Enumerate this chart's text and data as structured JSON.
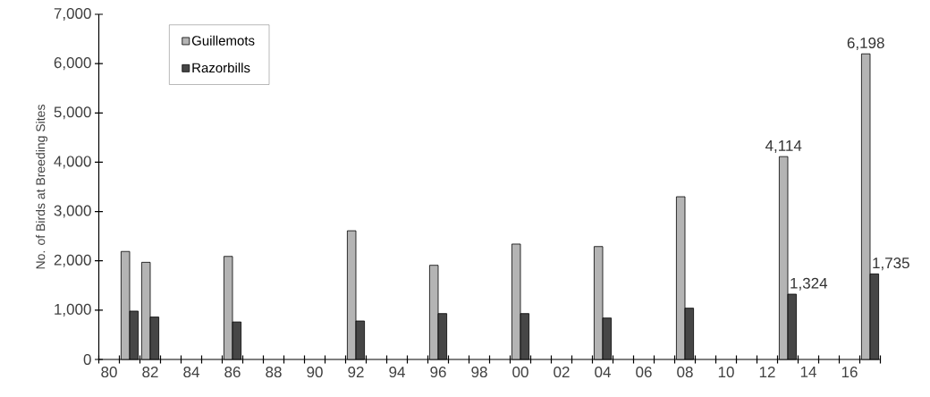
{
  "chart_data": {
    "type": "bar",
    "ylabel": "No. of Birds at Breeding Sites",
    "categories": [
      "80",
      null,
      "82",
      null,
      "84",
      null,
      "86",
      null,
      "88",
      null,
      "90",
      null,
      "92",
      null,
      "94",
      null,
      "96",
      null,
      "98",
      null,
      "00",
      null,
      "02",
      null,
      "04",
      null,
      "06",
      null,
      "08",
      null,
      "10",
      null,
      "12",
      null,
      "14",
      null,
      "16",
      null
    ],
    "series": [
      {
        "name": "Guillemots",
        "color": "#b4b4b4",
        "values": [
          null,
          2190,
          1970,
          null,
          null,
          null,
          2090,
          null,
          null,
          null,
          null,
          null,
          2610,
          null,
          null,
          null,
          1910,
          null,
          null,
          null,
          2340,
          null,
          null,
          null,
          2290,
          null,
          null,
          null,
          3300,
          null,
          null,
          null,
          null,
          4114,
          null,
          null,
          null,
          6198
        ],
        "value_labels": [
          null,
          null,
          null,
          null,
          null,
          null,
          null,
          null,
          null,
          null,
          null,
          null,
          null,
          null,
          null,
          null,
          null,
          null,
          null,
          null,
          null,
          null,
          null,
          null,
          null,
          null,
          null,
          null,
          null,
          null,
          null,
          null,
          null,
          "4,114",
          null,
          null,
          null,
          "6,198"
        ]
      },
      {
        "name": "Razorbills",
        "color": "#464646",
        "values": [
          null,
          980,
          860,
          null,
          null,
          null,
          760,
          null,
          null,
          null,
          null,
          null,
          780,
          null,
          null,
          null,
          930,
          null,
          null,
          null,
          930,
          null,
          null,
          null,
          840,
          null,
          null,
          null,
          1040,
          null,
          null,
          null,
          null,
          1324,
          null,
          null,
          null,
          1735
        ],
        "value_labels": [
          null,
          null,
          null,
          null,
          null,
          null,
          null,
          null,
          null,
          null,
          null,
          null,
          null,
          null,
          null,
          null,
          null,
          null,
          null,
          null,
          null,
          null,
          null,
          null,
          null,
          null,
          null,
          null,
          null,
          null,
          null,
          null,
          null,
          "1,324",
          null,
          null,
          null,
          "1,735"
        ]
      }
    ],
    "ylim": [
      0,
      7000
    ],
    "yticks": [
      0,
      {
        "value": 1000,
        "label": "1,000"
      },
      {
        "value": 2000,
        "label": "2,000"
      },
      {
        "value": 3000,
        "label": "3,000"
      },
      {
        "value": 4000,
        "label": "4,000"
      },
      {
        "value": 5000,
        "label": "5,000"
      },
      {
        "value": 6000,
        "label": "6,000"
      },
      {
        "value": 7000,
        "label": "7,000"
      }
    ],
    "grid": false,
    "legend": "top left"
  }
}
